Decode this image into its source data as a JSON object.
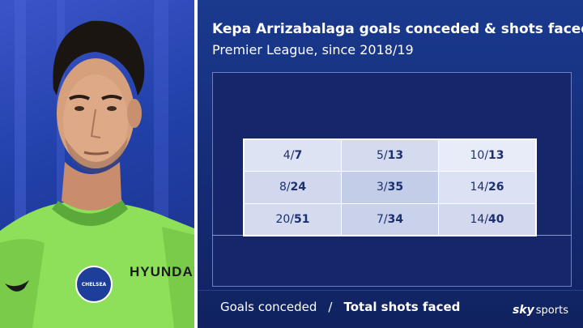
{
  "title": "Kepa Arrizabalaga goals conceded & shots faced",
  "subtitle": "Premier League, since 2018/19",
  "legend": {
    "conceded": "Goals conceded",
    "separator": "/",
    "shots": "Total shots faced"
  },
  "logo": {
    "sky": "sky",
    "sports": "sports"
  },
  "shirt": {
    "sponsor": "HYUNDAI",
    "crest": "CHELSEA"
  },
  "colors": {
    "background": "#142a6e",
    "pitch_lines": "#6f80c0",
    "shirt": "#8ee05a"
  },
  "chart_data": {
    "type": "table",
    "rows": [
      [
        {
          "conceded": "4",
          "shots": "7"
        },
        {
          "conceded": "5",
          "shots": "13"
        },
        {
          "conceded": "10",
          "shots": "13"
        }
      ],
      [
        {
          "conceded": "8",
          "shots": "24"
        },
        {
          "conceded": "3",
          "shots": "35"
        },
        {
          "conceded": "14",
          "shots": "26"
        }
      ],
      [
        {
          "conceded": "20",
          "shots": "51"
        },
        {
          "conceded": "7",
          "shots": "34"
        },
        {
          "conceded": "14",
          "shots": "40"
        }
      ]
    ]
  }
}
